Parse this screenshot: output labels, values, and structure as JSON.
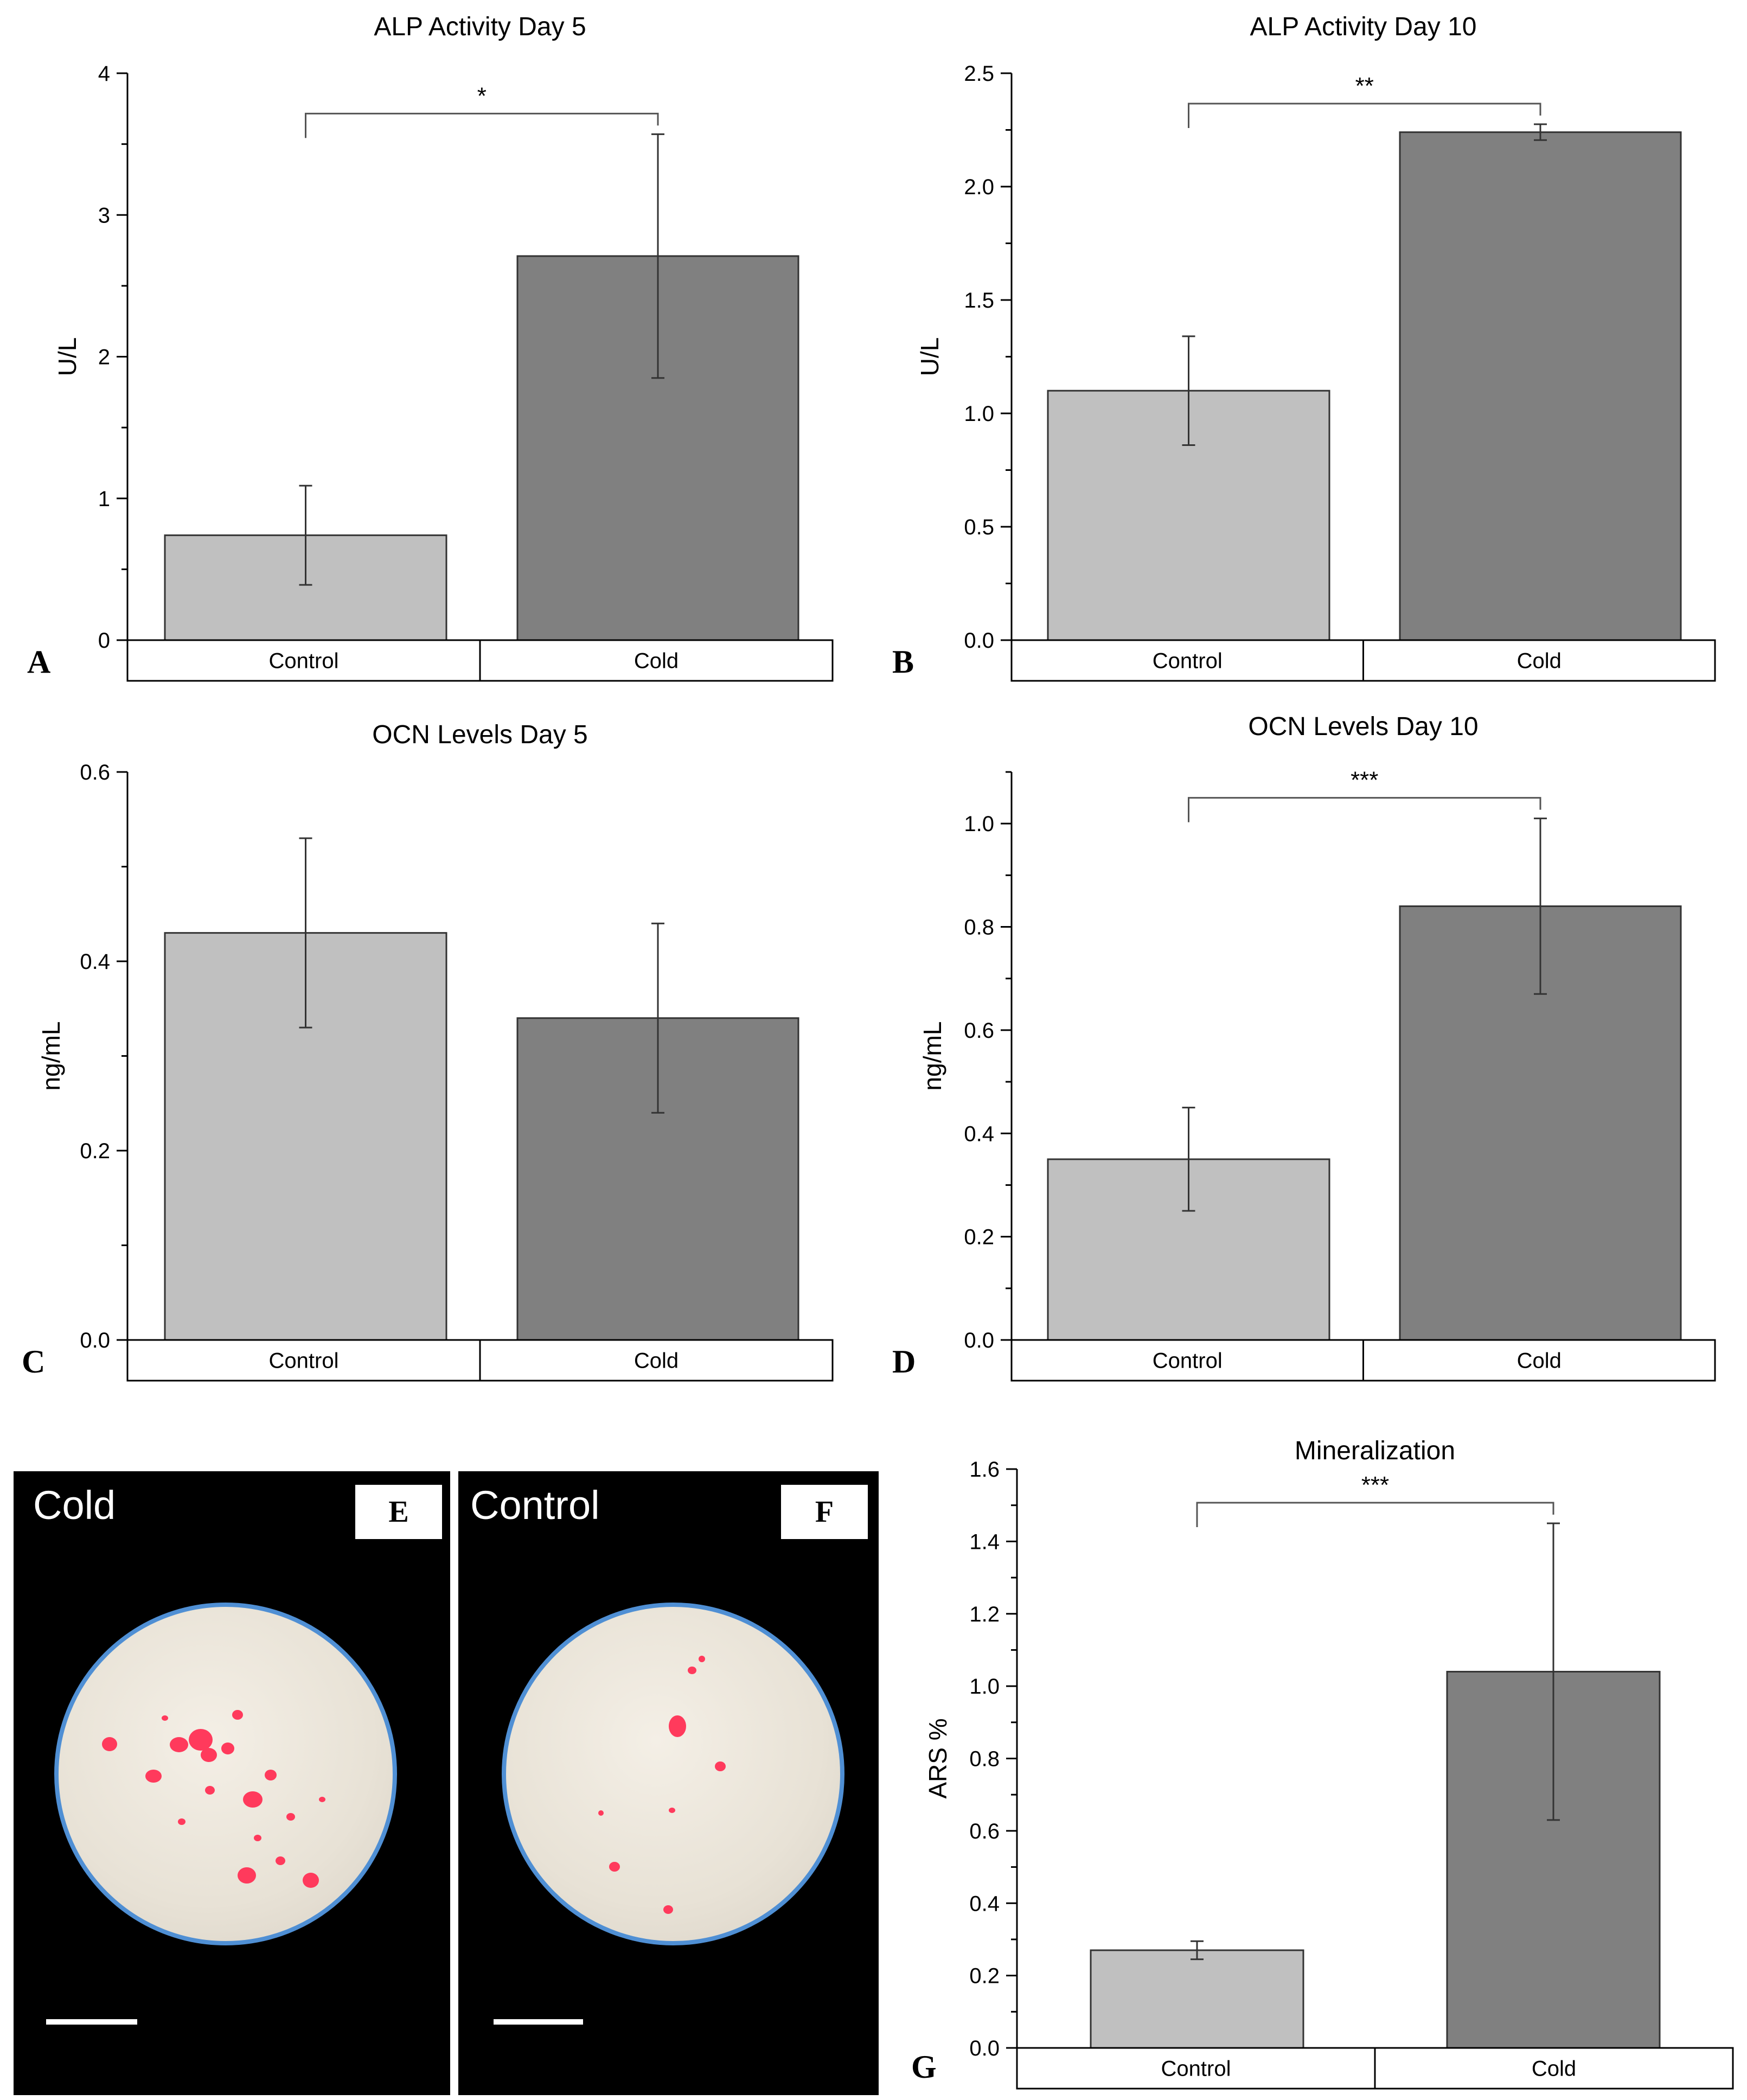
{
  "colors": {
    "control": "#c0c0c0",
    "cold": "#808080",
    "edge": "#333333",
    "text": "#000000"
  },
  "chart_data": [
    {
      "panel": "A",
      "type": "bar",
      "title": "ALP Activity Day 5",
      "categories": [
        "Control",
        "Cold"
      ],
      "values": [
        0.74,
        2.71
      ],
      "errors": [
        0.35,
        0.86
      ],
      "ylabel": "U/L",
      "xlabel": "",
      "ylim": [
        0,
        4
      ],
      "yticks": [
        0,
        1,
        2,
        3,
        4
      ],
      "ytick_labels": [
        "0",
        "1",
        "2",
        "3",
        "4"
      ],
      "minor_per_major": 2,
      "significance": "*",
      "grid": false
    },
    {
      "panel": "B",
      "type": "bar",
      "title": "ALP Activity Day 10",
      "categories": [
        "Control",
        "Cold"
      ],
      "values": [
        1.1,
        2.24
      ],
      "errors": [
        0.24,
        0.035
      ],
      "ylabel": "U/L",
      "xlabel": "",
      "ylim": [
        0,
        2.5
      ],
      "yticks": [
        0,
        0.5,
        1,
        1.5,
        2,
        2.5
      ],
      "ytick_labels": [
        "0.0",
        "0.5",
        "1.0",
        "1.5",
        "2.0",
        "2.5"
      ],
      "minor_per_major": 2,
      "significance": "**",
      "grid": false
    },
    {
      "panel": "C",
      "type": "bar",
      "title": "OCN Levels Day 5",
      "categories": [
        "Control",
        "Cold"
      ],
      "values": [
        0.43,
        0.34
      ],
      "errors": [
        0.1,
        0.1
      ],
      "ylabel": "ng/mL",
      "xlabel": "",
      "ylim": [
        0,
        0.6
      ],
      "yticks": [
        0,
        0.2,
        0.4,
        0.6
      ],
      "ytick_labels": [
        "0.0",
        "0.2",
        "0.4",
        "0.6"
      ],
      "minor_per_major": 2,
      "significance": "",
      "grid": false
    },
    {
      "panel": "D",
      "type": "bar",
      "title": "OCN Levels Day 10",
      "categories": [
        "Control",
        "Cold"
      ],
      "values": [
        0.35,
        0.84
      ],
      "errors": [
        0.1,
        0.17
      ],
      "ylabel": "ng/mL",
      "xlabel": "",
      "ylim": [
        0,
        1.1
      ],
      "yticks": [
        0,
        0.2,
        0.4,
        0.6,
        0.8,
        1.0
      ],
      "ytick_labels": [
        "0.0",
        "0.2",
        "0.4",
        "0.6",
        "0.8",
        "1.0"
      ],
      "minor_per_major": 2,
      "significance": "***",
      "grid": false
    },
    {
      "panel": "G",
      "type": "bar",
      "title": "Mineralization",
      "categories": [
        "Control",
        "Cold"
      ],
      "values": [
        0.27,
        1.04
      ],
      "errors": [
        0.025,
        0.41
      ],
      "ylabel": "ARS %",
      "xlabel": "",
      "ylim": [
        0,
        1.6
      ],
      "yticks": [
        0,
        0.2,
        0.4,
        0.6,
        0.8,
        1.0,
        1.2,
        1.4,
        1.6
      ],
      "ytick_labels": [
        "0.0",
        "0.2",
        "0.4",
        "0.6",
        "0.8",
        "1.0",
        "1.2",
        "1.4",
        "1.6"
      ],
      "minor_per_major": 2,
      "significance": "***",
      "grid": false
    }
  ],
  "images": [
    {
      "panel": "E",
      "label": "Cold",
      "letter": "E"
    },
    {
      "panel": "F",
      "label": "Control",
      "letter": "F"
    }
  ]
}
